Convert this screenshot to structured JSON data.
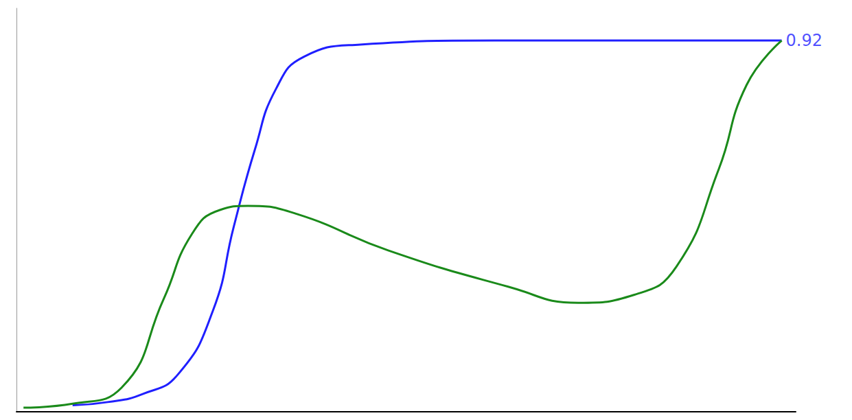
{
  "chart_data": {
    "type": "line",
    "xlim": [
      0,
      100
    ],
    "ylim": [
      0,
      1
    ],
    "tick_labels": false,
    "grid": false,
    "series": [
      {
        "color": "#1f1fff",
        "line_style": "solid",
        "x": [
          7.2,
          11.7,
          16.2,
          20.7,
          25.2,
          27.9,
          30.6,
          33.3,
          36.9,
          44.1,
          61.3,
          79.3,
          98.2
        ],
        "values": [
          0.016,
          0.024,
          0.044,
          0.092,
          0.25,
          0.46,
          0.65,
          0.8,
          0.88,
          0.91,
          0.92,
          0.92,
          0.92
        ]
      },
      {
        "color": "#1a8a1a",
        "line_style": "solid",
        "x": [
          0.9,
          7.2,
          13.5,
          18.9,
          22.5,
          26.1,
          29.7,
          36.0,
          47.7,
          63.1,
          72.1,
          79.3,
          84.7,
          90.1,
          93.7,
          98.2
        ],
        "values": [
          0.01,
          0.02,
          0.06,
          0.28,
          0.44,
          0.5,
          0.51,
          0.49,
          0.4,
          0.31,
          0.27,
          0.29,
          0.36,
          0.6,
          0.81,
          0.92
        ]
      }
    ],
    "annotations": [
      {
        "text": "0.92",
        "x": 98.2,
        "y": 0.92,
        "color": "#1f1fff"
      }
    ]
  }
}
